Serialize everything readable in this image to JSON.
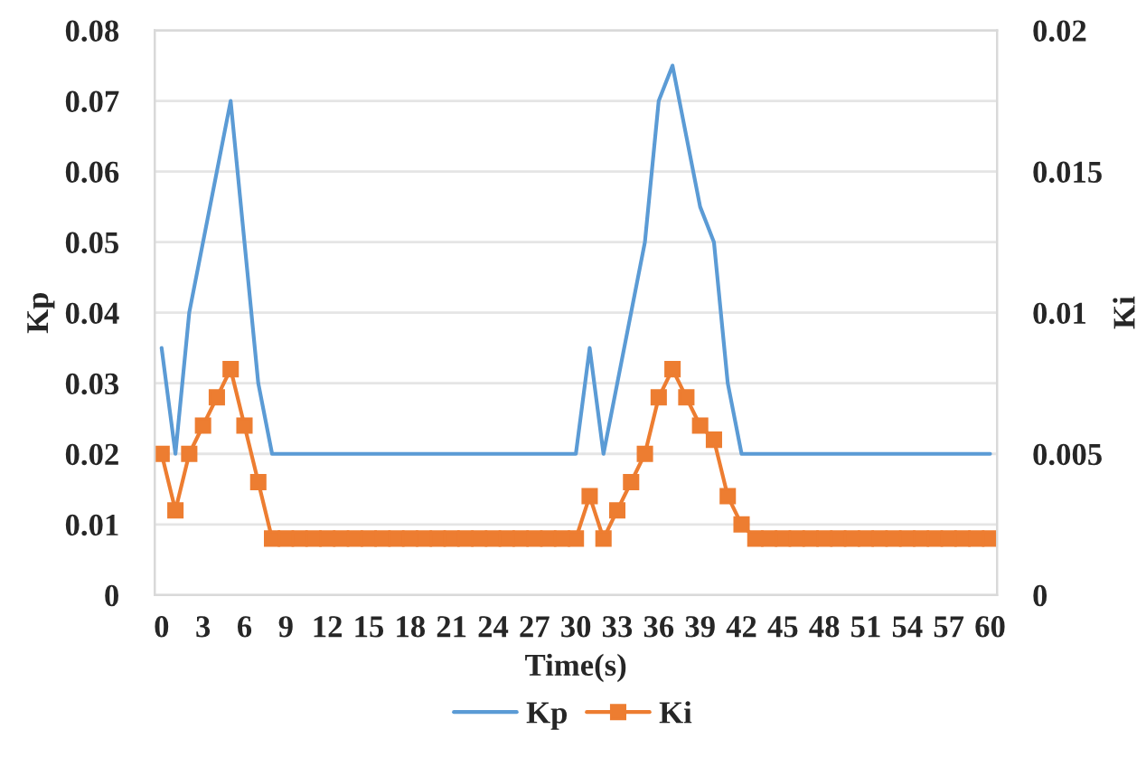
{
  "chart_data": {
    "type": "line",
    "xlabel": "Time(s)",
    "ylabel": "Kp",
    "y2label": "Ki",
    "x": [
      0,
      1,
      2,
      3,
      4,
      5,
      6,
      7,
      8,
      9,
      10,
      11,
      12,
      13,
      14,
      15,
      16,
      17,
      18,
      19,
      20,
      21,
      22,
      23,
      24,
      25,
      26,
      27,
      28,
      29,
      30,
      31,
      32,
      33,
      34,
      35,
      36,
      37,
      38,
      39,
      40,
      41,
      42,
      43,
      44,
      45,
      46,
      47,
      48,
      49,
      50,
      51,
      52,
      53,
      54,
      55,
      56,
      57,
      58,
      59,
      60
    ],
    "series": [
      {
        "name": "Kp",
        "color": "#5b9bd5",
        "marker": "none",
        "values": [
          0.035,
          0.02,
          0.04,
          0.05,
          0.06,
          0.07,
          0.05,
          0.03,
          0.02,
          0.02,
          0.02,
          0.02,
          0.02,
          0.02,
          0.02,
          0.02,
          0.02,
          0.02,
          0.02,
          0.02,
          0.02,
          0.02,
          0.02,
          0.02,
          0.02,
          0.02,
          0.02,
          0.02,
          0.02,
          0.02,
          0.02,
          0.035,
          0.02,
          0.03,
          0.04,
          0.05,
          0.07,
          0.075,
          0.065,
          0.055,
          0.05,
          0.03,
          0.02,
          0.02,
          0.02,
          0.02,
          0.02,
          0.02,
          0.02,
          0.02,
          0.02,
          0.02,
          0.02,
          0.02,
          0.02,
          0.02,
          0.02,
          0.02,
          0.02,
          0.02,
          0.02
        ]
      },
      {
        "name": "Ki",
        "color": "#ed7d31",
        "marker": "square",
        "axis": "y2",
        "values": [
          0.005,
          0.003,
          0.005,
          0.006,
          0.007,
          0.008,
          0.006,
          0.004,
          0.002,
          0.002,
          0.002,
          0.002,
          0.002,
          0.002,
          0.002,
          0.002,
          0.002,
          0.002,
          0.002,
          0.002,
          0.002,
          0.002,
          0.002,
          0.002,
          0.002,
          0.002,
          0.002,
          0.002,
          0.002,
          0.002,
          0.002,
          0.0035,
          0.002,
          0.003,
          0.004,
          0.005,
          0.007,
          0.008,
          0.007,
          0.006,
          0.0055,
          0.0035,
          0.0025,
          0.002,
          0.002,
          0.002,
          0.002,
          0.002,
          0.002,
          0.002,
          0.002,
          0.002,
          0.002,
          0.002,
          0.002,
          0.002,
          0.002,
          0.002,
          0.002,
          0.002,
          0.002
        ]
      }
    ],
    "xlim": [
      -0.5,
      60.5
    ],
    "xticks": [
      0,
      3,
      6,
      9,
      12,
      15,
      18,
      21,
      24,
      27,
      30,
      33,
      36,
      39,
      42,
      45,
      48,
      51,
      54,
      57,
      60
    ],
    "ylim": [
      0,
      0.08
    ],
    "yticks": [
      0,
      0.01,
      0.02,
      0.03,
      0.04,
      0.05,
      0.06,
      0.07,
      0.08
    ],
    "y2lim": [
      0,
      0.02
    ],
    "y2ticks": [
      0,
      0.005,
      0.01,
      0.015,
      0.02
    ],
    "grid": "y",
    "legend": "bottom",
    "line_style": "solid"
  }
}
